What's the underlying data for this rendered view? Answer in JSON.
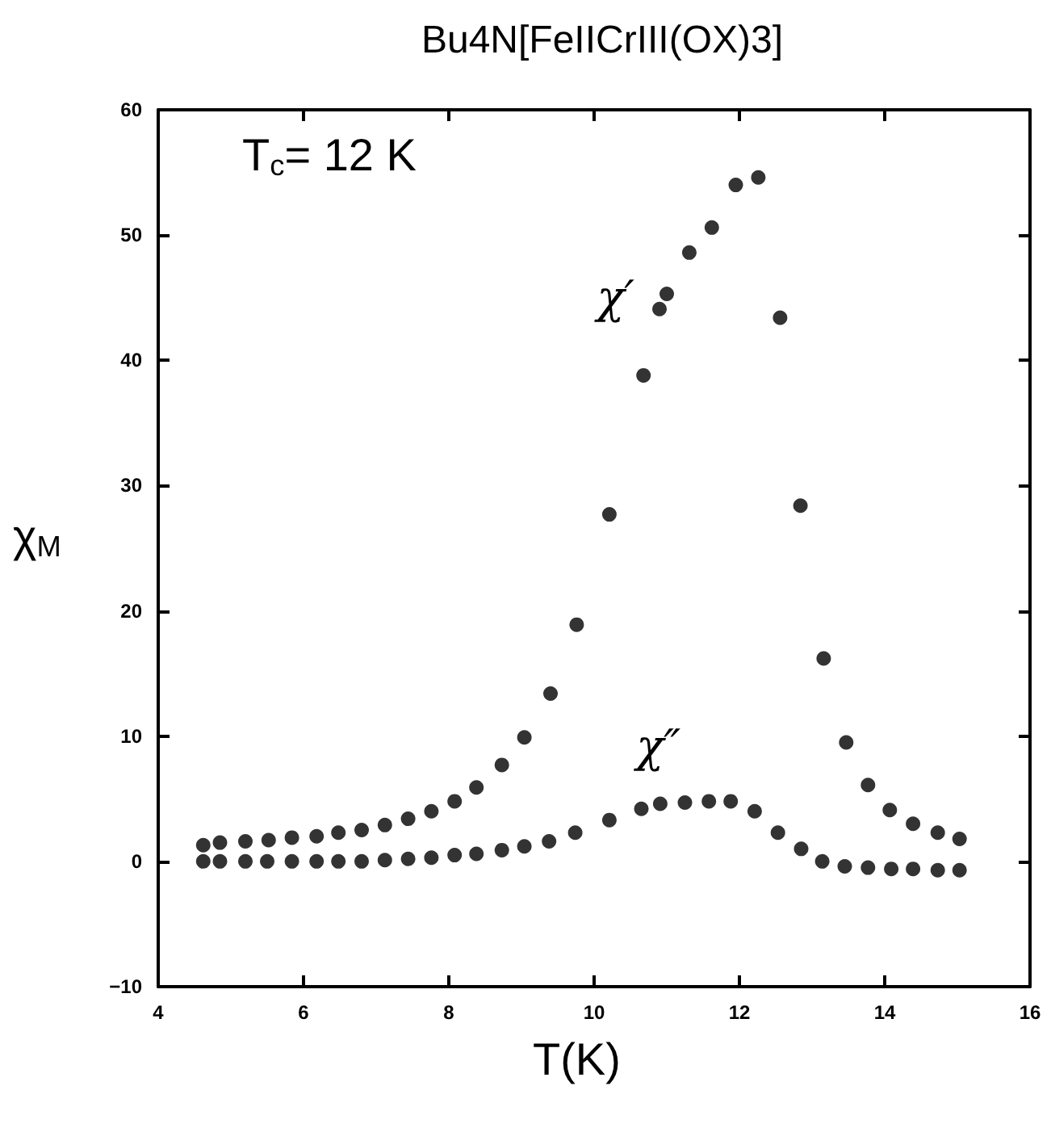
{
  "chart_data": {
    "type": "scatter",
    "title": "Bu4N[FeIICrIII(OX)3]",
    "xlabel": "T(K)",
    "ylabel": "χ$_{M}$",
    "annotations": [
      "T$_{c}$= 12 K"
    ],
    "xlim": [
      4,
      16
    ],
    "xticks": [
      4,
      6,
      8,
      10,
      12,
      14,
      16
    ],
    "ylim": [
      -10,
      60
    ],
    "yticks": [
      -10,
      0,
      10,
      20,
      30,
      40,
      50,
      60
    ],
    "grid": false,
    "legend": false,
    "marker": "circle",
    "series": [
      {
        "name": "χ′",
        "color": "#000000",
        "x": [
          4.62,
          4.85,
          5.2,
          5.52,
          5.84,
          6.18,
          6.48,
          6.8,
          7.12,
          7.44,
          7.76,
          8.08,
          8.38,
          8.73,
          9.04,
          9.4,
          9.76,
          10.21,
          10.68,
          10.9,
          11.0,
          11.31,
          11.62,
          11.95,
          12.26,
          12.56,
          12.84,
          13.16,
          13.47,
          13.77,
          14.07,
          14.39,
          14.73,
          15.03
        ],
        "values": [
          1.3,
          1.5,
          1.6,
          1.7,
          1.9,
          2.0,
          2.3,
          2.5,
          2.9,
          3.4,
          4.0,
          4.8,
          5.9,
          7.7,
          9.9,
          13.4,
          18.9,
          27.7,
          38.8,
          44.1,
          45.3,
          48.6,
          50.6,
          54.0,
          54.6,
          43.4,
          28.4,
          16.2,
          9.5,
          6.1,
          4.1,
          3.0,
          2.3,
          1.8
        ]
      },
      {
        "name": "χ″",
        "color": "#000000",
        "x": [
          4.62,
          4.85,
          5.2,
          5.5,
          5.84,
          6.18,
          6.48,
          6.8,
          7.12,
          7.44,
          7.76,
          8.08,
          8.38,
          8.73,
          9.04,
          9.38,
          9.74,
          10.21,
          10.65,
          10.91,
          11.25,
          11.58,
          11.88,
          12.21,
          12.53,
          12.85,
          13.14,
          13.45,
          13.77,
          14.09,
          14.39,
          14.73,
          15.03
        ],
        "values": [
          0.0,
          0.0,
          0.0,
          0.0,
          0.0,
          0.0,
          0.0,
          0.0,
          0.1,
          0.2,
          0.3,
          0.5,
          0.6,
          0.9,
          1.2,
          1.6,
          2.3,
          3.3,
          4.2,
          4.6,
          4.7,
          4.8,
          4.8,
          4.0,
          2.3,
          1.0,
          0.0,
          -0.4,
          -0.5,
          -0.6,
          -0.6,
          -0.7,
          -0.7
        ]
      }
    ]
  }
}
